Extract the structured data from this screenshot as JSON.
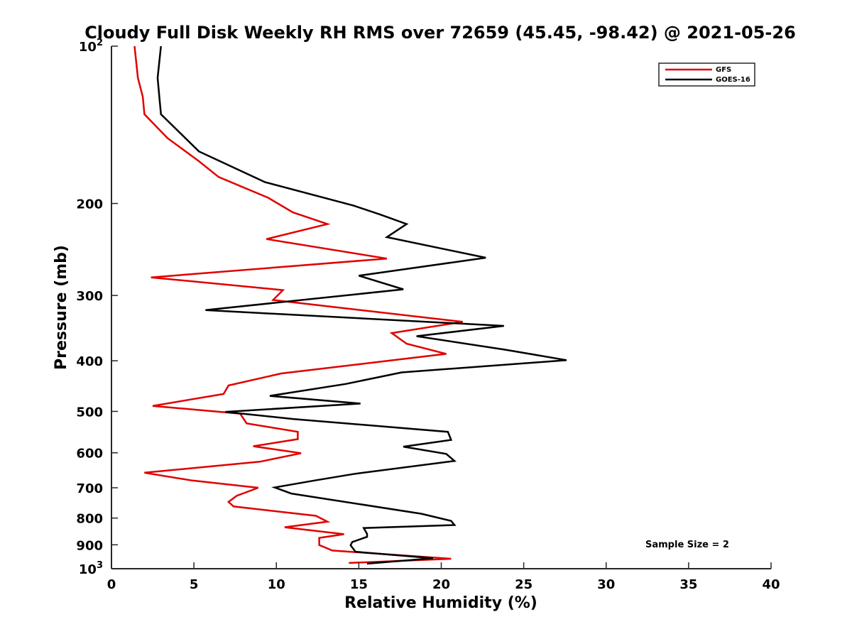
{
  "chart_data": {
    "type": "line",
    "title": "Cloudy Full Disk Weekly RH RMS over 72659 (45.45, -98.42) @ 2021-05-26",
    "xlabel": "Relative Humidity (%)",
    "ylabel": "Pressure (mb)",
    "xlim": [
      0,
      40
    ],
    "ylim": [
      100,
      1000
    ],
    "yscale": "log",
    "y_reversed": true,
    "x_ticks": [
      0,
      5,
      10,
      15,
      20,
      25,
      30,
      35,
      40
    ],
    "x_tick_labels": [
      "0",
      "5",
      "10",
      "15",
      "20",
      "25",
      "30",
      "35",
      "40"
    ],
    "y_ticks": [
      100,
      200,
      300,
      400,
      500,
      600,
      700,
      800,
      900,
      1000
    ],
    "y_tick_labels": [
      {
        "base": "10",
        "exp": "2"
      },
      {
        "base": "200",
        "exp": ""
      },
      {
        "base": "300",
        "exp": ""
      },
      {
        "base": "400",
        "exp": ""
      },
      {
        "base": "500",
        "exp": ""
      },
      {
        "base": "600",
        "exp": ""
      },
      {
        "base": "700",
        "exp": ""
      },
      {
        "base": "800",
        "exp": ""
      },
      {
        "base": "900",
        "exp": ""
      },
      {
        "base": "10",
        "exp": "3"
      }
    ],
    "legend_position": "top-right",
    "grid": false,
    "annotation": "Sample Size = 2",
    "series": [
      {
        "name": "GFS",
        "color": "#e00000",
        "points": [
          [
            1.4,
            100
          ],
          [
            1.6,
            115
          ],
          [
            1.9,
            125
          ],
          [
            2.0,
            135
          ],
          [
            3.4,
            150
          ],
          [
            5.3,
            166
          ],
          [
            6.5,
            178
          ],
          [
            9.5,
            195
          ],
          [
            11.0,
            208
          ],
          [
            13.1,
            219
          ],
          [
            9.4,
            234
          ],
          [
            16.7,
            255
          ],
          [
            2.4,
            277
          ],
          [
            10.4,
            293
          ],
          [
            9.8,
            306
          ],
          [
            21.3,
            337
          ],
          [
            17.0,
            354
          ],
          [
            17.9,
            371
          ],
          [
            20.3,
            388
          ],
          [
            10.3,
            423
          ],
          [
            7.1,
            446
          ],
          [
            6.8,
            463
          ],
          [
            2.5,
            488
          ],
          [
            7.8,
            505
          ],
          [
            8.2,
            527
          ],
          [
            11.3,
            547
          ],
          [
            11.3,
            565
          ],
          [
            8.6,
            583
          ],
          [
            11.5,
            601
          ],
          [
            9.0,
            624
          ],
          [
            2.0,
            655
          ],
          [
            4.9,
            678
          ],
          [
            8.9,
            700
          ],
          [
            7.6,
            725
          ],
          [
            7.1,
            745
          ],
          [
            7.4,
            760
          ],
          [
            12.4,
            792
          ],
          [
            13.1,
            813
          ],
          [
            10.5,
            833
          ],
          [
            14.1,
            859
          ],
          [
            12.6,
            873
          ],
          [
            12.6,
            901
          ],
          [
            13.4,
            923
          ],
          [
            20.6,
            957
          ],
          [
            14.4,
            975
          ]
        ]
      },
      {
        "name": "GOES-16",
        "color": "#000000",
        "points": [
          [
            3.0,
            100
          ],
          [
            2.8,
            115
          ],
          [
            2.9,
            125
          ],
          [
            3.0,
            135
          ],
          [
            5.3,
            159
          ],
          [
            9.3,
            182
          ],
          [
            14.7,
            202
          ],
          [
            16.3,
            210
          ],
          [
            17.9,
            219
          ],
          [
            16.7,
            232
          ],
          [
            22.7,
            254
          ],
          [
            15.0,
            275
          ],
          [
            17.7,
            292
          ],
          [
            5.7,
            320
          ],
          [
            23.8,
            343
          ],
          [
            18.5,
            359
          ],
          [
            23.9,
            381
          ],
          [
            27.6,
            399
          ],
          [
            17.6,
            421
          ],
          [
            14.2,
            443
          ],
          [
            9.6,
            467
          ],
          [
            15.1,
            483
          ],
          [
            6.9,
            501
          ],
          [
            11.0,
            517
          ],
          [
            20.4,
            547
          ],
          [
            20.6,
            567
          ],
          [
            17.7,
            584
          ],
          [
            20.3,
            603
          ],
          [
            20.8,
            622
          ],
          [
            14.8,
            658
          ],
          [
            12.3,
            678
          ],
          [
            9.9,
            699
          ],
          [
            10.9,
            718
          ],
          [
            18.8,
            785
          ],
          [
            20.6,
            810
          ],
          [
            20.8,
            825
          ],
          [
            15.3,
            836
          ],
          [
            15.5,
            858
          ],
          [
            15.5,
            869
          ],
          [
            14.6,
            889
          ],
          [
            14.5,
            902
          ],
          [
            14.8,
            928
          ],
          [
            19.5,
            955
          ],
          [
            15.5,
            978
          ]
        ]
      }
    ]
  }
}
